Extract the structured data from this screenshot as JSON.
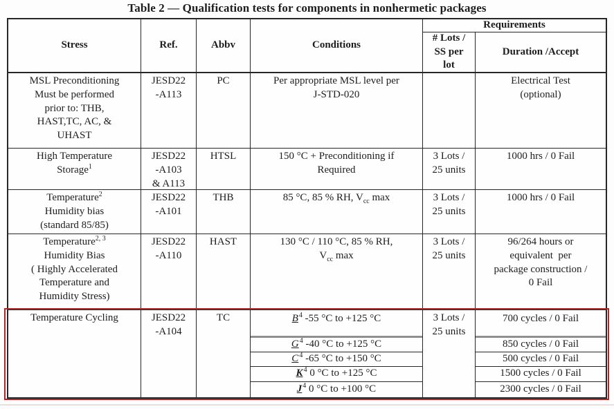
{
  "title": "Table 2 — Qualification tests for components in nonhermetic packages",
  "header": {
    "stress": "Stress",
    "ref": "Ref.",
    "abbv": "Abbv",
    "conditions": "Conditions",
    "requirements": "Requirements",
    "lots": [
      "# Lots /",
      "SS per",
      "lot"
    ],
    "duration": "Duration /Accept"
  },
  "rows": {
    "msl": {
      "stress": [
        "MSL Preconditioning",
        "Must be performed",
        "prior to: THB,",
        "HAST,TC, AC, &",
        "UHAST"
      ],
      "ref": [
        "JESD22",
        "-A113"
      ],
      "abbv": "PC",
      "conditions": [
        "Per appropriate MSL level per",
        "J-STD-020"
      ],
      "lots": "",
      "duration": [
        "Electrical Test",
        "(optional)"
      ]
    },
    "htsl": {
      "stress_line1": "High Temperature",
      "stress_line2": "Storage",
      "stress_sup": "1",
      "ref": [
        "JESD22",
        "-A103",
        "& A113"
      ],
      "abbv": "HTSL",
      "conditions": [
        "150 °C + Preconditioning if",
        "Required"
      ],
      "lots": [
        "3 Lots /",
        "25 units"
      ],
      "duration": "1000 hrs / 0 Fail"
    },
    "thb": {
      "stress_line1": "Temperature",
      "stress_sup": "2",
      "stress_rest": [
        "Humidity bias",
        "(standard 85/85)"
      ],
      "ref": [
        "JESD22",
        "-A101"
      ],
      "abbv": "THB",
      "cond_pre": "85 °C, 85 % RH, V",
      "cond_sub": "cc",
      "cond_post": " max",
      "lots": [
        "3 Lots /",
        "25 units"
      ],
      "duration": "1000 hrs / 0 Fail"
    },
    "hast": {
      "stress_line1": "Temperature",
      "stress_sup": "2, 3",
      "stress_rest": [
        "Humidity Bias",
        "( Highly Accelerated",
        "Temperature and",
        "Humidity Stress)"
      ],
      "ref": [
        "JESD22",
        "-A110"
      ],
      "abbv": "HAST",
      "cond_line1": "130 °C / 110 °C, 85 % RH,",
      "cond_pre2": "V",
      "cond_sub": "cc",
      "cond_post2": " max",
      "lots": [
        "3 Lots /",
        "25 units"
      ],
      "duration": [
        "96/264 hours or",
        "equivalent  per",
        "package construction /",
        "0 Fail"
      ]
    },
    "tc": {
      "stress": "Temperature Cycling",
      "ref": [
        "JESD22",
        "-A104"
      ],
      "abbv": "TC",
      "lots": [
        "3 Lots /",
        "25 units"
      ],
      "subs": [
        {
          "letter": "B",
          "sup": "4",
          "text": " -55 °C to +125 °C",
          "duration": "700 cycles / 0 Fail"
        },
        {
          "letter": "G",
          "sup": "4",
          "text": " -40 °C to +125 °C",
          "duration": "850 cycles / 0 Fail"
        },
        {
          "letter": "C",
          "sup": "4",
          "text": " -65 °C to +150 °C",
          "duration": "500 cycles / 0 Fail"
        },
        {
          "letter": "K",
          "sup": "4",
          "text": " 0 °C to +125 °C",
          "duration": "1500 cycles / 0 Fail"
        },
        {
          "letter": "J",
          "sup": "4",
          "text": " 0 °C to +100 °C",
          "duration": "2300 cycles / 0 Fail"
        }
      ]
    }
  }
}
